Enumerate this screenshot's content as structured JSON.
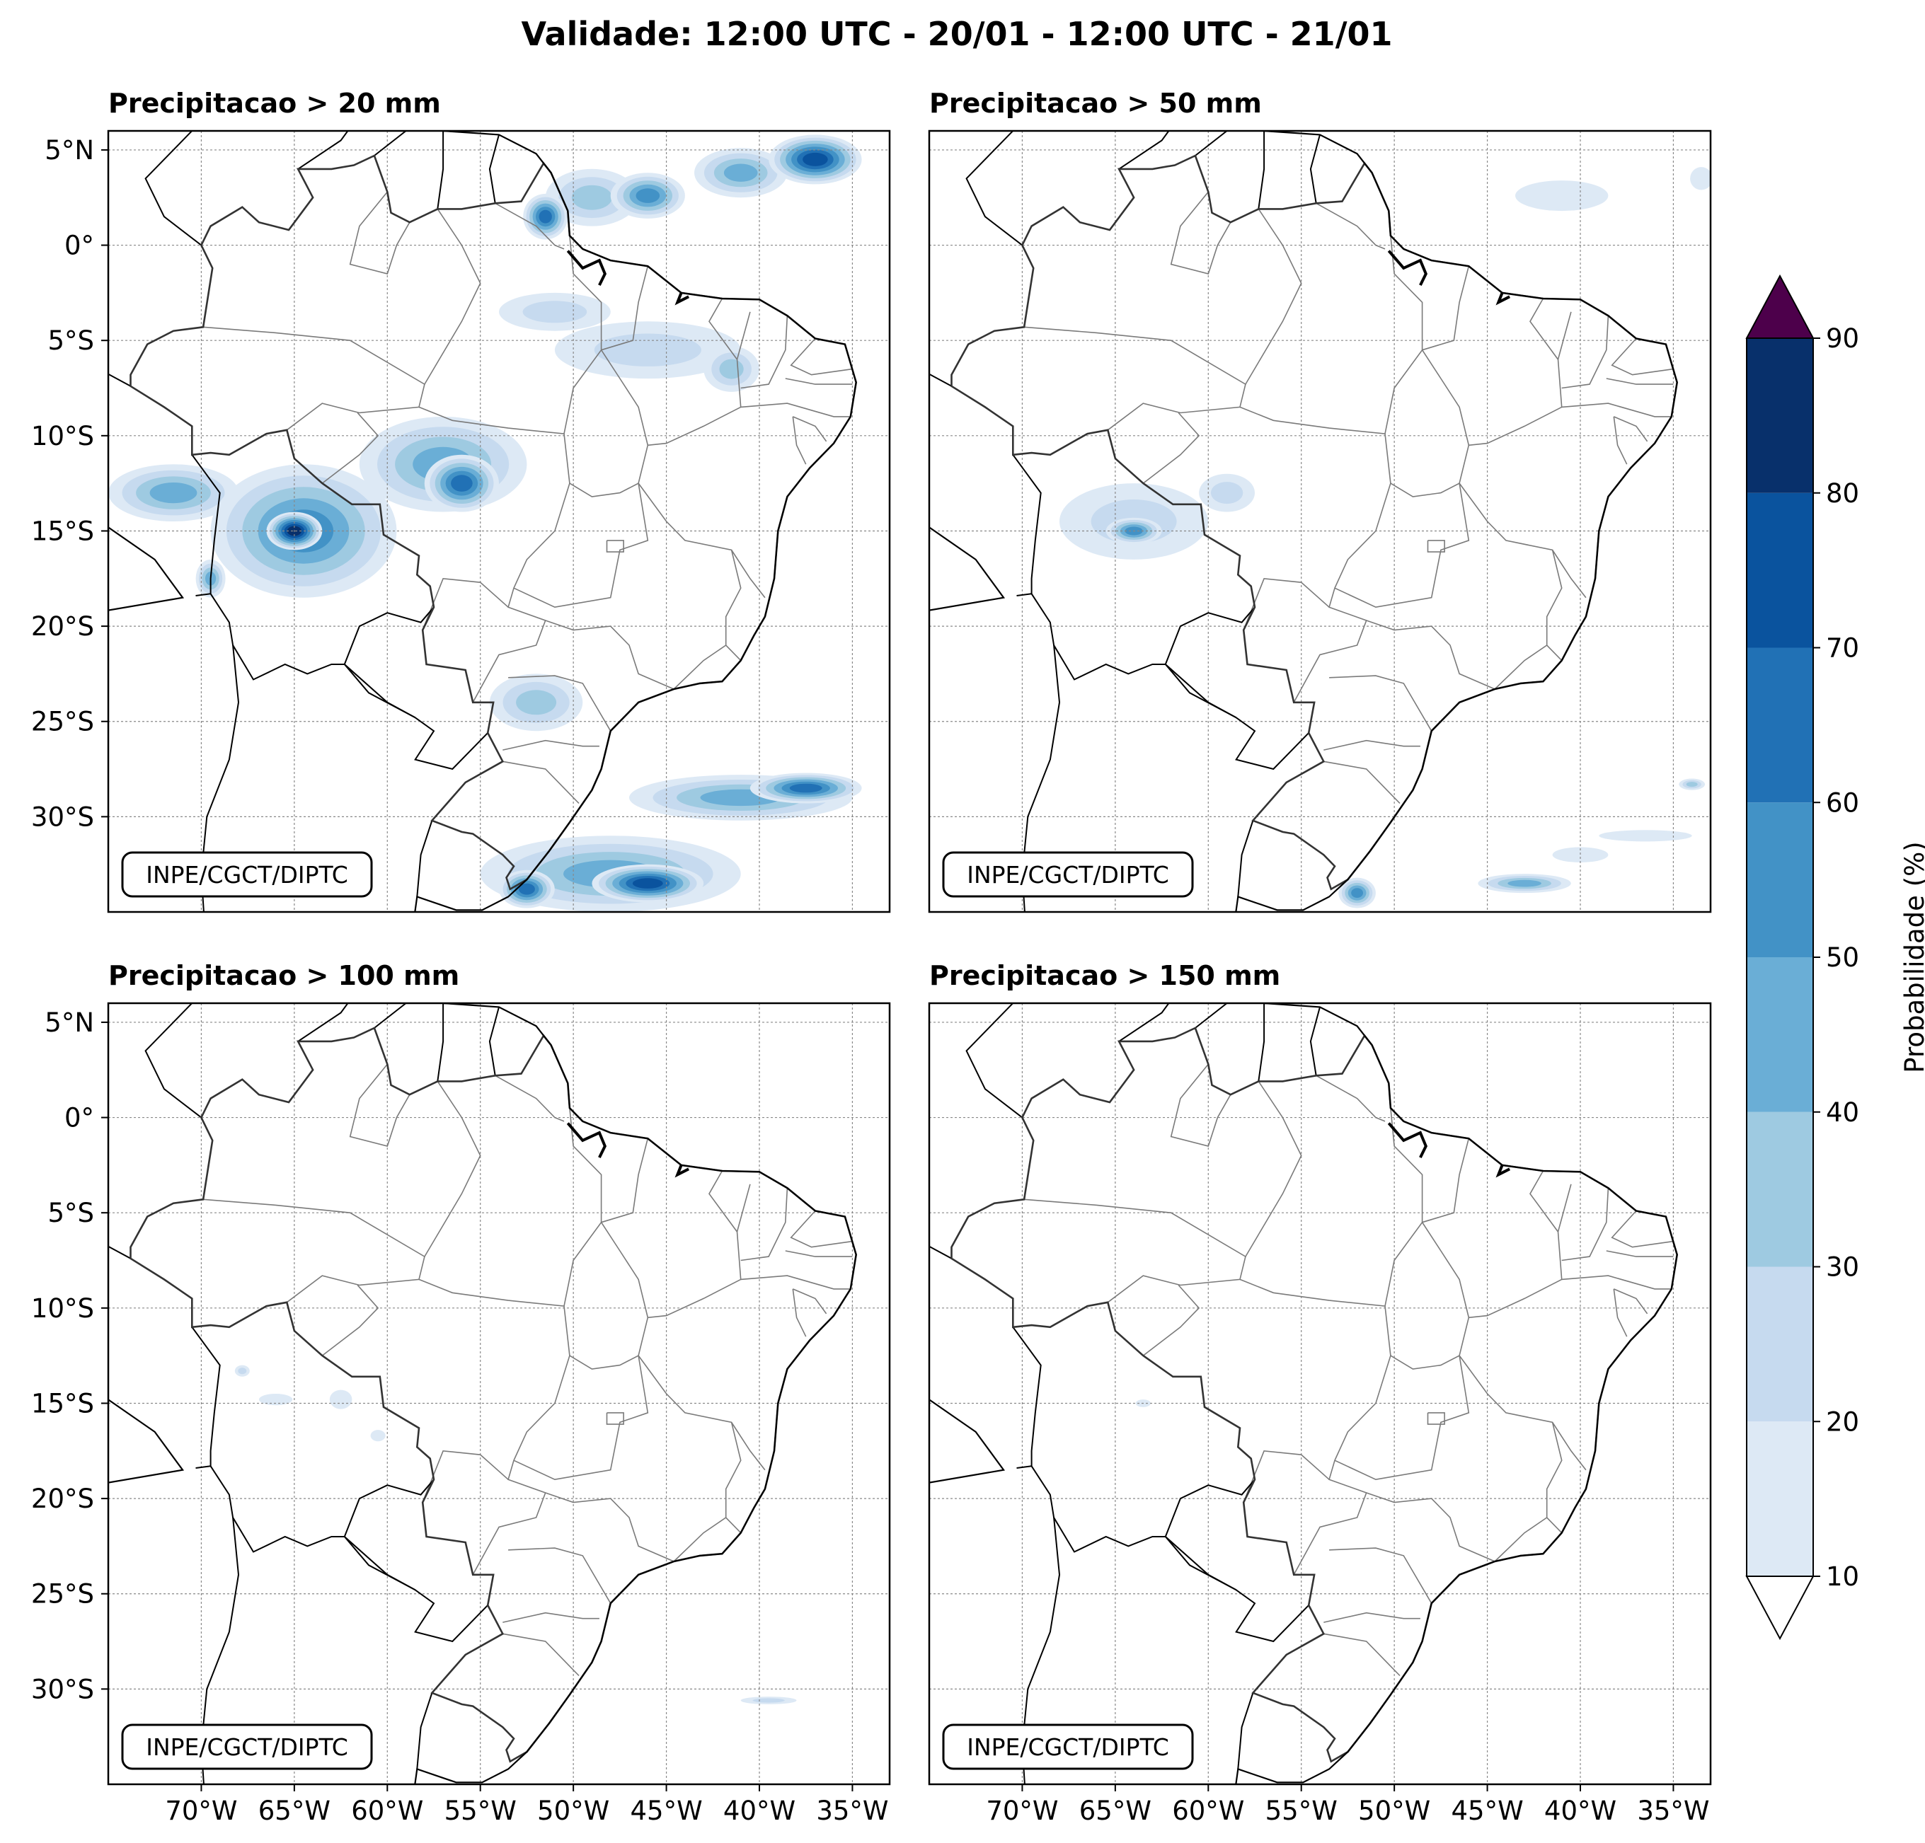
{
  "figure": {
    "title": "Validade: 12:00 UTC - 20/01 - 12:00 UTC - 21/01",
    "credit": "INPE/CGCT/DIPTC",
    "map_extent": {
      "lon_min": -75,
      "lon_max": -33,
      "lat_min": -35,
      "lat_max": 6
    },
    "lon_ticks": [
      {
        "lon": -70,
        "label": "70°W"
      },
      {
        "lon": -65,
        "label": "65°W"
      },
      {
        "lon": -60,
        "label": "60°W"
      },
      {
        "lon": -55,
        "label": "55°W"
      },
      {
        "lon": -50,
        "label": "50°W"
      },
      {
        "lon": -45,
        "label": "45°W"
      },
      {
        "lon": -40,
        "label": "40°W"
      },
      {
        "lon": -35,
        "label": "35°W"
      }
    ],
    "lat_ticks": [
      {
        "lat": 5,
        "label": "5°N"
      },
      {
        "lat": 0,
        "label": "0°"
      },
      {
        "lat": -5,
        "label": "5°S"
      },
      {
        "lat": -10,
        "label": "10°S"
      },
      {
        "lat": -15,
        "label": "15°S"
      },
      {
        "lat": -20,
        "label": "20°S"
      },
      {
        "lat": -25,
        "label": "25°S"
      },
      {
        "lat": -30,
        "label": "30°S"
      }
    ]
  },
  "panels": [
    {
      "id": "p20",
      "title": "Precipitacao > 20 mm",
      "blobs": [
        {
          "lon": -49,
          "lat": 2.5,
          "rlon": 2.5,
          "rlat": 1.5,
          "p": 35
        },
        {
          "lon": -46,
          "lat": 2.6,
          "rlon": 2.0,
          "rlat": 1.2,
          "p": 55
        },
        {
          "lon": -41,
          "lat": 3.8,
          "rlon": 2.5,
          "rlat": 1.3,
          "p": 45
        },
        {
          "lon": -37,
          "lat": 4.5,
          "rlon": 2.5,
          "rlat": 1.3,
          "p": 75
        },
        {
          "lon": -51.5,
          "lat": 1.5,
          "rlon": 1.2,
          "rlat": 1.2,
          "p": 60
        },
        {
          "lon": -46,
          "lat": -5.5,
          "rlon": 5.0,
          "rlat": 1.5,
          "p": 20
        },
        {
          "lon": -41.5,
          "lat": -6.5,
          "rlon": 1.5,
          "rlat": 1.2,
          "p": 35
        },
        {
          "lon": -51,
          "lat": -3.5,
          "rlon": 3.0,
          "rlat": 1.0,
          "p": 20
        },
        {
          "lon": -57,
          "lat": -11.5,
          "rlon": 4.5,
          "rlat": 2.5,
          "p": 45
        },
        {
          "lon": -56,
          "lat": -12.5,
          "rlon": 2.0,
          "rlat": 1.5,
          "p": 65
        },
        {
          "lon": -64.5,
          "lat": -15,
          "rlon": 5.0,
          "rlat": 3.5,
          "p": 55
        },
        {
          "lon": -65,
          "lat": -15,
          "rlon": 1.5,
          "rlat": 1.0,
          "p": 85
        },
        {
          "lon": -71.5,
          "lat": -13,
          "rlon": 3.5,
          "rlat": 1.5,
          "p": 45
        },
        {
          "lon": -69.5,
          "lat": -17.5,
          "rlon": 0.8,
          "rlat": 1.0,
          "p": 40
        },
        {
          "lon": -52,
          "lat": -24,
          "rlon": 2.5,
          "rlat": 1.5,
          "p": 35
        },
        {
          "lon": -41,
          "lat": -29,
          "rlon": 6.0,
          "rlat": 1.2,
          "p": 40
        },
        {
          "lon": -37.5,
          "lat": -28.5,
          "rlon": 3.0,
          "rlat": 0.8,
          "p": 65
        },
        {
          "lon": -48,
          "lat": -33,
          "rlon": 7.0,
          "rlat": 2.0,
          "p": 45
        },
        {
          "lon": -46,
          "lat": -33.5,
          "rlon": 3.0,
          "rlat": 1.0,
          "p": 75
        },
        {
          "lon": -52.5,
          "lat": -33.8,
          "rlon": 1.5,
          "rlat": 1.0,
          "p": 65
        }
      ]
    },
    {
      "id": "p50",
      "title": "Precipitacao > 50 mm",
      "blobs": [
        {
          "lon": -41,
          "lat": 2.6,
          "rlon": 2.5,
          "rlat": 0.8,
          "p": 15
        },
        {
          "lon": -33.5,
          "lat": 3.5,
          "rlon": 0.6,
          "rlat": 0.6,
          "p": 15
        },
        {
          "lon": -64,
          "lat": -14.5,
          "rlon": 4.0,
          "rlat": 2.0,
          "p": 20
        },
        {
          "lon": -64,
          "lat": -15,
          "rlon": 1.5,
          "rlat": 0.7,
          "p": 55
        },
        {
          "lon": -59,
          "lat": -13,
          "rlon": 1.5,
          "rlat": 1.0,
          "p": 25
        },
        {
          "lon": -52,
          "lat": -34,
          "rlon": 1.0,
          "rlat": 0.8,
          "p": 55
        },
        {
          "lon": -43,
          "lat": -33.5,
          "rlon": 2.5,
          "rlat": 0.5,
          "p": 40
        },
        {
          "lon": -40,
          "lat": -32,
          "rlon": 1.5,
          "rlat": 0.4,
          "p": 15
        },
        {
          "lon": -36.5,
          "lat": -31,
          "rlon": 2.5,
          "rlat": 0.3,
          "p": 15
        },
        {
          "lon": -34,
          "lat": -28.3,
          "rlon": 0.7,
          "rlat": 0.3,
          "p": 30
        }
      ]
    },
    {
      "id": "p100",
      "title": "Precipitacao > 100 mm",
      "blobs": [
        {
          "lon": -66,
          "lat": -14.8,
          "rlon": 0.9,
          "rlat": 0.3,
          "p": 15
        },
        {
          "lon": -62.5,
          "lat": -14.8,
          "rlon": 0.6,
          "rlat": 0.5,
          "p": 15
        },
        {
          "lon": -67.8,
          "lat": -13.3,
          "rlon": 0.4,
          "rlat": 0.3,
          "p": 25
        },
        {
          "lon": -60.5,
          "lat": -16.7,
          "rlon": 0.4,
          "rlat": 0.3,
          "p": 15
        },
        {
          "lon": -39.5,
          "lat": -30.6,
          "rlon": 1.5,
          "rlat": 0.2,
          "p": 20
        }
      ]
    },
    {
      "id": "p150",
      "title": "Precipitacao > 150 mm",
      "blobs": [
        {
          "lon": -63.5,
          "lat": -15.0,
          "rlon": 0.4,
          "rlat": 0.2,
          "p": 15
        }
      ]
    }
  ],
  "colorbar": {
    "label": "Probabilidade (%)",
    "levels": [
      10,
      20,
      30,
      40,
      50,
      60,
      70,
      80,
      90
    ],
    "colors": [
      "#dde9f5",
      "#c6daef",
      "#9ecae1",
      "#6aaed6",
      "#4292c6",
      "#2171b5",
      "#0a539e",
      "#08306b"
    ],
    "over_color": "#4d004b",
    "under_color": "#ffffff"
  }
}
